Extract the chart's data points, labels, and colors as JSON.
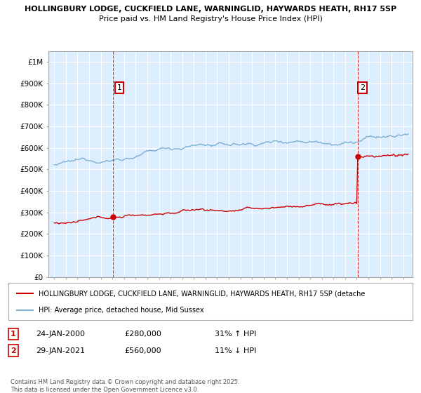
{
  "title_line1": "HOLLINGBURY LODGE, CUCKFIELD LANE, WARNINGLID, HAYWARDS HEATH, RH17 5SP",
  "title_line2": "Price paid vs. HM Land Registry's House Price Index (HPI)",
  "ylabel_ticks": [
    "£0",
    "£100K",
    "£200K",
    "£300K",
    "£400K",
    "£500K",
    "£600K",
    "£700K",
    "£800K",
    "£900K",
    "£1M"
  ],
  "ytick_values": [
    0,
    100000,
    200000,
    300000,
    400000,
    500000,
    600000,
    700000,
    800000,
    900000,
    1000000
  ],
  "ylim": [
    0,
    1050000
  ],
  "line1_color": "#cc0000",
  "line2_color": "#7bafd4",
  "plot_bg_color": "#ddeeff",
  "background_color": "#ffffff",
  "grid_color": "#ffffff",
  "point1_year": 2000.07,
  "point1_value": 280000,
  "point1_label": "1",
  "point2_year": 2021.08,
  "point2_value": 560000,
  "point2_label": "2",
  "vline_color": "#cc0000",
  "legend_line1": "HOLLINGBURY LODGE, CUCKFIELD LANE, WARNINGLID, HAYWARDS HEATH, RH17 5SP (detache",
  "legend_line2": "HPI: Average price, detached house, Mid Sussex",
  "annotation1_date": "24-JAN-2000",
  "annotation1_price": "£280,000",
  "annotation1_hpi": "31% ↑ HPI",
  "annotation2_date": "29-JAN-2021",
  "annotation2_price": "£560,000",
  "annotation2_hpi": "11% ↓ HPI",
  "footer": "Contains HM Land Registry data © Crown copyright and database right 2025.\nThis data is licensed under the Open Government Licence v3.0.",
  "xlim_start": 1994.5,
  "xlim_end": 2025.8
}
